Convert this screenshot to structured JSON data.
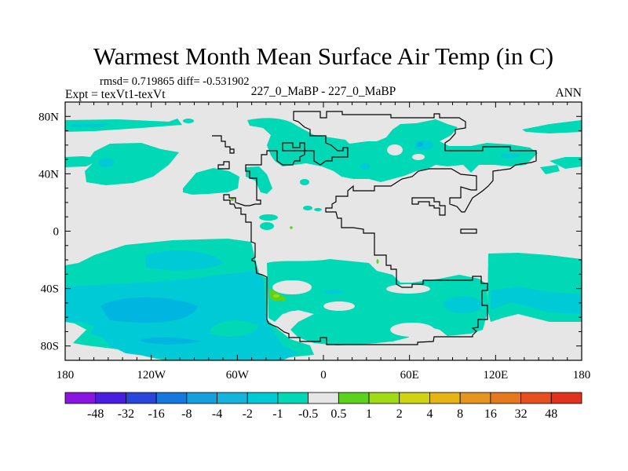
{
  "title": "Warmest Month Mean Surface Air Temp (in C)",
  "stats_text": "rmsd= 0.719865 diff= -0.531902",
  "expt_text": "Expt = texVt1-texVt",
  "center_text": "227_0_MaBP - 227_0_MaBP",
  "season_text": "ANN",
  "chart_data": {
    "type": "heatmap",
    "projection": "cylindrical-equidistant",
    "title": "Warmest Month Mean Surface Air Temp (in C)",
    "lon_range": [
      -180,
      180
    ],
    "lat_range": [
      -90,
      90
    ],
    "x_ticks": [
      {
        "value": -180,
        "label": "180"
      },
      {
        "value": -120,
        "label": "120W"
      },
      {
        "value": -60,
        "label": "60W"
      },
      {
        "value": 0,
        "label": "0"
      },
      {
        "value": 60,
        "label": "60E"
      },
      {
        "value": 120,
        "label": "120E"
      },
      {
        "value": 180,
        "label": "180"
      }
    ],
    "y_ticks": [
      {
        "value": 80,
        "label": "80N"
      },
      {
        "value": 40,
        "label": "40N"
      },
      {
        "value": 0,
        "label": "0"
      },
      {
        "value": -40,
        "label": "40S"
      },
      {
        "value": -80,
        "label": "80S"
      }
    ],
    "minor_tick_step": 10,
    "colorbar": {
      "levels": [
        "-48",
        "-32",
        "-16",
        "-8",
        "-4",
        "-2",
        "-1",
        "-0.5",
        "0.5",
        "1",
        "2",
        "4",
        "8",
        "16",
        "32",
        "48"
      ],
      "colors": [
        "#8a14e0",
        "#4a1ee0",
        "#2846dc",
        "#1478dc",
        "#14a0dc",
        "#14b4dc",
        "#00cad6",
        "#00d8b6",
        "#e6e6e6",
        "#5ad21e",
        "#a0dc14",
        "#d2d214",
        "#e6b414",
        "#e6961e",
        "#e6781e",
        "#e6501e",
        "#e0321e"
      ],
      "placement": "bottom"
    }
  }
}
